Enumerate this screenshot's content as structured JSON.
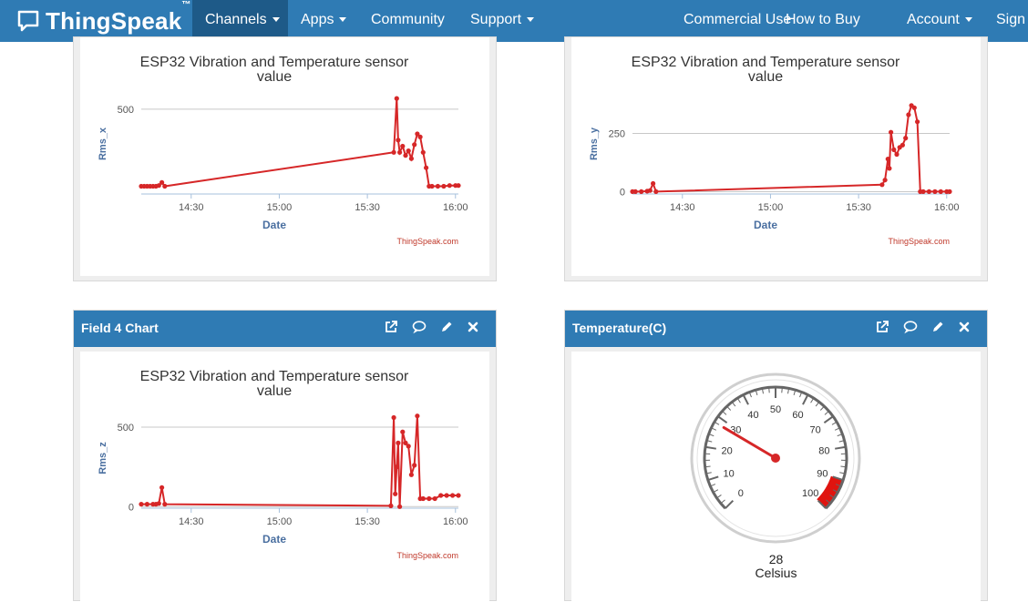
{
  "nav": {
    "brand": "ThingSpeak",
    "brand_tm": "™",
    "channels": "Channels",
    "apps": "Apps",
    "community": "Community",
    "support": "Support",
    "commercial": "Commercial Use",
    "how_to_buy": "How to Buy",
    "account": "Account",
    "sign": "Sign O"
  },
  "cards": {
    "field4": {
      "title": "Field 4 Chart"
    },
    "temperature": {
      "title": "Temperature(C)"
    }
  },
  "colors": {
    "navbar": "#2f7bb4",
    "series": "#d62728",
    "axis_text": "#4a6fa0"
  },
  "chart_data": [
    {
      "type": "line",
      "title": "ESP32 Vibration and Temperature sensor value",
      "xlabel": "Date",
      "ylabel": "Rms_x",
      "credit": "ThingSpeak.com",
      "x_ticks": [
        "14:30",
        "15:00",
        "15:30",
        "16:00"
      ],
      "y_ticks": [
        500
      ],
      "xlim": [
        "14:13",
        "16:01"
      ],
      "ylim": [
        -50,
        600
      ],
      "points": [
        [
          "14:13",
          0
        ],
        [
          "14:14",
          0
        ],
        [
          "14:15",
          0
        ],
        [
          "14:16",
          0
        ],
        [
          "14:17",
          0
        ],
        [
          "14:18",
          0
        ],
        [
          "14:19",
          5
        ],
        [
          "14:20",
          25
        ],
        [
          "14:21",
          0
        ],
        [
          "15:39",
          220
        ],
        [
          "15:40",
          570
        ],
        [
          "15:40.5",
          300
        ],
        [
          "15:41",
          220
        ],
        [
          "15:42",
          260
        ],
        [
          "15:43",
          200
        ],
        [
          "15:44",
          230
        ],
        [
          "15:45",
          180
        ],
        [
          "15:46",
          270
        ],
        [
          "15:47",
          340
        ],
        [
          "15:48",
          320
        ],
        [
          "15:49",
          220
        ],
        [
          "15:50",
          120
        ],
        [
          "15:51",
          0
        ],
        [
          "15:52",
          0
        ],
        [
          "15:54",
          0
        ],
        [
          "15:56",
          0
        ],
        [
          "15:58",
          5
        ],
        [
          "16:00",
          5
        ],
        [
          "16:01",
          5
        ]
      ]
    },
    {
      "type": "line",
      "title": "ESP32 Vibration and Temperature sensor value",
      "xlabel": "Date",
      "ylabel": "Rms_y",
      "credit": "ThingSpeak.com",
      "x_ticks": [
        "14:30",
        "15:00",
        "15:30",
        "16:00"
      ],
      "y_ticks": [
        0,
        250
      ],
      "xlim": [
        "14:13",
        "16:01"
      ],
      "ylim": [
        -10,
        420
      ],
      "points": [
        [
          "14:13",
          0
        ],
        [
          "14:14",
          0
        ],
        [
          "14:16",
          0
        ],
        [
          "14:18",
          2
        ],
        [
          "14:19",
          5
        ],
        [
          "14:20",
          35
        ],
        [
          "14:21",
          0
        ],
        [
          "15:38",
          30
        ],
        [
          "15:39",
          50
        ],
        [
          "15:40",
          140
        ],
        [
          "15:40.5",
          100
        ],
        [
          "15:41",
          255
        ],
        [
          "15:42",
          180
        ],
        [
          "15:43",
          160
        ],
        [
          "15:44",
          190
        ],
        [
          "15:45",
          200
        ],
        [
          "15:46",
          230
        ],
        [
          "15:47",
          330
        ],
        [
          "15:48",
          370
        ],
        [
          "15:49",
          360
        ],
        [
          "15:50",
          300
        ],
        [
          "15:51",
          0
        ],
        [
          "15:52",
          0
        ],
        [
          "15:54",
          0
        ],
        [
          "15:56",
          0
        ],
        [
          "15:58",
          0
        ],
        [
          "16:00",
          0
        ],
        [
          "16:01",
          0
        ]
      ]
    },
    {
      "type": "line",
      "title": "ESP32 Vibration and Temperature sensor value",
      "xlabel": "Date",
      "ylabel": "Rms_z",
      "credit": "ThingSpeak.com",
      "x_ticks": [
        "14:30",
        "15:00",
        "15:30",
        "16:00"
      ],
      "y_ticks": [
        0,
        500
      ],
      "xlim": [
        "14:13",
        "16:01"
      ],
      "ylim": [
        -10,
        620
      ],
      "points": [
        [
          "14:13",
          15
        ],
        [
          "14:15",
          15
        ],
        [
          "14:17",
          15
        ],
        [
          "14:18",
          15
        ],
        [
          "14:19",
          20
        ],
        [
          "14:20",
          120
        ],
        [
          "14:21",
          15
        ],
        [
          "15:38",
          5
        ],
        [
          "15:39",
          560
        ],
        [
          "15:39.5",
          80
        ],
        [
          "15:40",
          250
        ],
        [
          "15:40.5",
          400
        ],
        [
          "15:41",
          0
        ],
        [
          "15:42",
          470
        ],
        [
          "15:43",
          400
        ],
        [
          "15:44",
          380
        ],
        [
          "15:45",
          200
        ],
        [
          "15:46",
          260
        ],
        [
          "15:47",
          570
        ],
        [
          "15:48",
          50
        ],
        [
          "15:49",
          50
        ],
        [
          "15:51",
          50
        ],
        [
          "15:53",
          50
        ],
        [
          "15:55",
          70
        ],
        [
          "15:57",
          70
        ],
        [
          "15:59",
          70
        ],
        [
          "16:01",
          70
        ]
      ]
    },
    {
      "type": "gauge",
      "value": 28,
      "unit": "Celsius",
      "min": 0,
      "max": 100,
      "ticks": [
        "0",
        "10",
        "20",
        "30",
        "40",
        "50",
        "60",
        "70",
        "80",
        "90",
        "100"
      ],
      "danger_range": [
        90,
        100
      ]
    }
  ]
}
